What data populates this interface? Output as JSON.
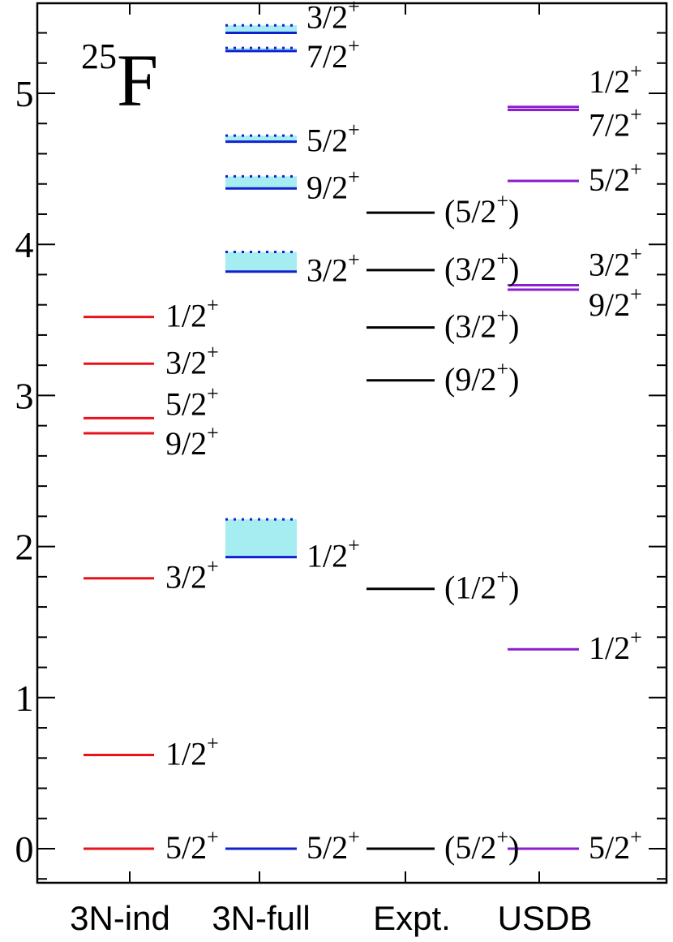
{
  "chart_data": {
    "type": "level-scheme",
    "nucleus": {
      "mass": "25",
      "element": "F"
    },
    "ylim": [
      -0.2,
      5.6
    ],
    "yticks": [
      "0",
      "1",
      "2",
      "3",
      "4",
      "5"
    ],
    "columns": [
      {
        "name": "3N-ind",
        "color": "#e8131a",
        "levels": [
          {
            "energy": 0.0,
            "label": "5/2",
            "parity": "+"
          },
          {
            "energy": 0.62,
            "label": "1/2",
            "parity": "+"
          },
          {
            "energy": 1.79,
            "label": "3/2",
            "parity": "+"
          },
          {
            "energy": 2.75,
            "label": "9/2",
            "parity": "+"
          },
          {
            "energy": 2.85,
            "label": "5/2",
            "parity": "+"
          },
          {
            "energy": 3.21,
            "label": "3/2",
            "parity": "+"
          },
          {
            "energy": 3.52,
            "label": "1/2",
            "parity": "+"
          }
        ]
      },
      {
        "name": "3N-full",
        "color": "#1020d0",
        "levels": [
          {
            "energy": 0.0,
            "label": "5/2",
            "parity": "+"
          },
          {
            "energy": 1.93,
            "upper": 2.18,
            "label": "1/2",
            "parity": "+"
          },
          {
            "energy": 3.82,
            "upper": 3.95,
            "label": "3/2",
            "parity": "+"
          },
          {
            "energy": 4.37,
            "upper": 4.45,
            "label": "9/2",
            "parity": "+"
          },
          {
            "energy": 4.68,
            "upper": 4.72,
            "label": "5/2",
            "parity": "+"
          },
          {
            "energy": 5.28,
            "upper": 5.3,
            "label": "7/2",
            "parity": "+"
          },
          {
            "energy": 5.4,
            "upper": 5.45,
            "label": "3/2",
            "parity": "+"
          }
        ]
      },
      {
        "name": "Expt.",
        "color": "#000000",
        "levels": [
          {
            "energy": 0.0,
            "label": "(5/2",
            "parity": "+",
            "close": ")"
          },
          {
            "energy": 1.72,
            "label": "(1/2",
            "parity": "+",
            "close": ")"
          },
          {
            "energy": 3.1,
            "label": "(9/2",
            "parity": "+",
            "close": ")"
          },
          {
            "energy": 3.45,
            "label": "(3/2",
            "parity": "+",
            "close": ")"
          },
          {
            "energy": 3.83,
            "label": "(3/2",
            "parity": "+",
            "close": ")"
          },
          {
            "energy": 4.21,
            "label": "(5/2",
            "parity": "+",
            "close": ")"
          }
        ]
      },
      {
        "name": "USDB",
        "color": "#8a1ed0",
        "levels": [
          {
            "energy": 0.0,
            "label": "5/2",
            "parity": "+"
          },
          {
            "energy": 1.32,
            "label": "1/2",
            "parity": "+"
          },
          {
            "energy": 3.7,
            "label": "9/2",
            "parity": "+"
          },
          {
            "energy": 3.73,
            "label": "3/2",
            "parity": "+"
          },
          {
            "energy": 4.42,
            "label": "5/2",
            "parity": "+"
          },
          {
            "energy": 4.89,
            "label": "7/2",
            "parity": "+"
          },
          {
            "energy": 4.91,
            "label": "1/2",
            "parity": "+"
          }
        ]
      }
    ],
    "band_fill": "#7fe6ea"
  }
}
